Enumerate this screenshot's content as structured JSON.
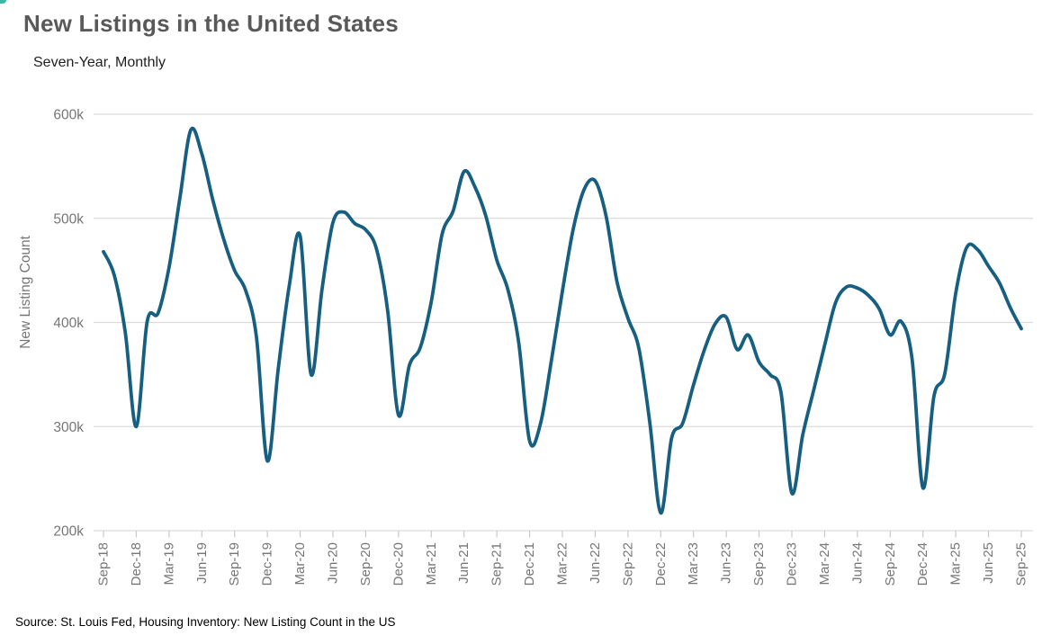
{
  "header": {
    "title": "New Listings in the United States",
    "subtitle": "Seven-Year, Monthly"
  },
  "source_note": "Source: St. Louis Fed, Housing Inventory: New Listing Count in the US",
  "colors": {
    "line": "#175F80",
    "grid": "#DCDCDC",
    "tick": "#C9C9C9",
    "axis_text": "#767676",
    "title_text": "#595959",
    "subtitle_text": "#1F1F1F",
    "source_text": "#000000",
    "corner_artifact": "#3AB9A6"
  },
  "chart_data": {
    "type": "line",
    "title": "New Listings in the United States",
    "subtitle": "Seven-Year, Monthly",
    "xlabel": "",
    "ylabel": "New Listing Count",
    "units": "thousands of new listings",
    "ylim": [
      200,
      600
    ],
    "grid": "horizontal",
    "legend": "none",
    "y_ticks": [
      {
        "value": 200,
        "label": "200k"
      },
      {
        "value": 300,
        "label": "300k"
      },
      {
        "value": 400,
        "label": "400k"
      },
      {
        "value": 500,
        "label": "500k"
      },
      {
        "value": 600,
        "label": "600k"
      }
    ],
    "x_tick_labels": [
      "Sep-18",
      "Dec-18",
      "Mar-19",
      "Jun-19",
      "Sep-19",
      "Dec-19",
      "Mar-20",
      "Jun-20",
      "Sep-20",
      "Dec-20",
      "Mar-21",
      "Jun-21",
      "Sep-21",
      "Dec-21",
      "Mar-22",
      "Jun-22",
      "Sep-22",
      "Dec-22",
      "Mar-23",
      "Jun-23",
      "Sep-23",
      "Dec-23",
      "Mar-24",
      "Jun-24",
      "Sep-24",
      "Dec-24",
      "Mar-25",
      "Jun-25",
      "Sep-25"
    ],
    "x": [
      "Sep-18",
      "Oct-18",
      "Nov-18",
      "Dec-18",
      "Jan-19",
      "Feb-19",
      "Mar-19",
      "Apr-19",
      "May-19",
      "Jun-19",
      "Jul-19",
      "Aug-19",
      "Sep-19",
      "Oct-19",
      "Nov-19",
      "Dec-19",
      "Jan-20",
      "Feb-20",
      "Mar-20",
      "Apr-20",
      "May-20",
      "Jun-20",
      "Jul-20",
      "Aug-20",
      "Sep-20",
      "Oct-20",
      "Nov-20",
      "Dec-20",
      "Jan-21",
      "Feb-21",
      "Mar-21",
      "Apr-21",
      "May-21",
      "Jun-21",
      "Jul-21",
      "Aug-21",
      "Sep-21",
      "Oct-21",
      "Nov-21",
      "Dec-21",
      "Jan-22",
      "Feb-22",
      "Mar-22",
      "Apr-22",
      "May-22",
      "Jun-22",
      "Jul-22",
      "Aug-22",
      "Sep-22",
      "Oct-22",
      "Nov-22",
      "Dec-22",
      "Jan-23",
      "Feb-23",
      "Mar-23",
      "Apr-23",
      "May-23",
      "Jun-23",
      "Jul-23",
      "Aug-23",
      "Sep-23",
      "Oct-23",
      "Nov-23",
      "Dec-23",
      "Jan-24",
      "Feb-24",
      "Mar-24",
      "Apr-24",
      "May-24",
      "Jun-24",
      "Jul-24",
      "Aug-24",
      "Sep-24",
      "Oct-24",
      "Nov-24",
      "Dec-24",
      "Jan-25",
      "Feb-25",
      "Mar-25",
      "Apr-25",
      "May-25",
      "Jun-25",
      "Jul-25",
      "Aug-25",
      "Sep-25"
    ],
    "values_thousands": [
      468,
      445,
      390,
      300,
      401,
      409,
      453,
      520,
      585,
      562,
      518,
      480,
      450,
      431,
      386,
      267,
      356,
      435,
      483,
      350,
      432,
      496,
      506,
      495,
      489,
      470,
      412,
      311,
      359,
      376,
      420,
      485,
      507,
      545,
      530,
      502,
      460,
      432,
      381,
      286,
      303,
      364,
      430,
      490,
      528,
      536,
      502,
      439,
      404,
      375,
      304,
      217,
      289,
      303,
      340,
      374,
      399,
      405,
      374,
      388,
      362,
      350,
      333,
      236,
      292,
      335,
      378,
      419,
      434,
      433,
      426,
      413,
      388,
      401,
      365,
      241,
      329,
      351,
      428,
      472,
      470,
      454,
      438,
      414,
      394
    ]
  }
}
